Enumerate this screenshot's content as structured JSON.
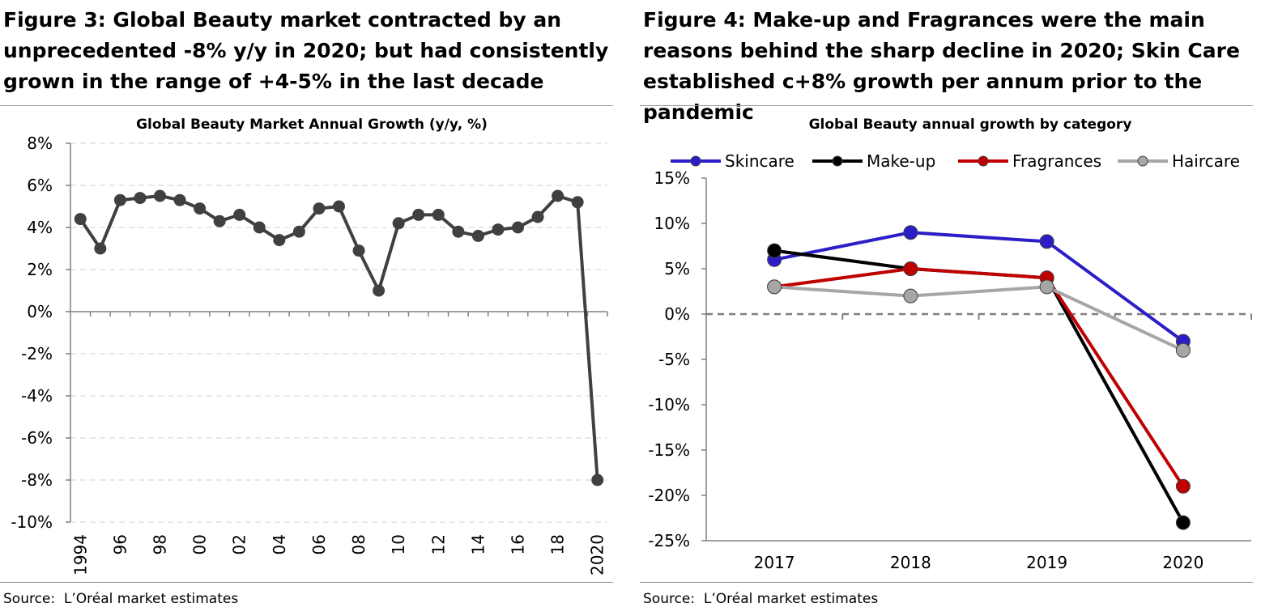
{
  "figure3": {
    "heading": "Figure 3: Global Beauty market contracted by an unprecedented -8% y/y in 2020; but had consistently grown in the range of +4-5% in the last decade",
    "source": "Source:  L’Oréal market estimates"
  },
  "figure4": {
    "heading": "Figure 4: Make-up and Fragrances were the main reasons behind the sharp decline in 2020; Skin Care established c+8% growth per annum prior to the pandemic",
    "source": "Source:  L’Oréal market estimates"
  },
  "chart_data": [
    {
      "type": "line",
      "title": "Global Beauty Market Annual Growth  (y/y, %)",
      "xlabel": "",
      "ylabel": "",
      "x": [
        1994,
        1995,
        1996,
        1997,
        1998,
        1999,
        2000,
        2001,
        2002,
        2003,
        2004,
        2005,
        2006,
        2007,
        2008,
        2009,
        2010,
        2011,
        2012,
        2013,
        2014,
        2015,
        2016,
        2017,
        2018,
        2019,
        2020
      ],
      "x_tick_labels": [
        {
          "x": 1994,
          "label": "1994"
        },
        {
          "x": 1996,
          "label": "96"
        },
        {
          "x": 1998,
          "label": "98"
        },
        {
          "x": 2000,
          "label": "00"
        },
        {
          "x": 2002,
          "label": "02"
        },
        {
          "x": 2004,
          "label": "04"
        },
        {
          "x": 2006,
          "label": "06"
        },
        {
          "x": 2008,
          "label": "08"
        },
        {
          "x": 2010,
          "label": "10"
        },
        {
          "x": 2012,
          "label": "12"
        },
        {
          "x": 2014,
          "label": "14"
        },
        {
          "x": 2016,
          "label": "16"
        },
        {
          "x": 2018,
          "label": "18"
        },
        {
          "x": 2020,
          "label": "2020"
        }
      ],
      "series": [
        {
          "values": [
            4.4,
            3.0,
            5.3,
            5.4,
            5.5,
            5.3,
            4.9,
            4.3,
            4.6,
            4.0,
            3.4,
            3.8,
            4.9,
            5.0,
            2.9,
            1.0,
            4.2,
            4.6,
            4.6,
            3.8,
            3.6,
            3.9,
            4.0,
            4.5,
            5.5,
            5.2,
            -8.0
          ],
          "color": "#404040"
        }
      ],
      "ylim": [
        -10,
        8
      ],
      "yticks": [
        8,
        6,
        4,
        2,
        0,
        -2,
        -4,
        -6,
        -8,
        -10
      ],
      "ytick_labels": [
        "8%",
        "6%",
        "4%",
        "2%",
        "0%",
        "-2%",
        "-4%",
        "-6%",
        "-8%",
        "-10%"
      ],
      "grid": true
    },
    {
      "type": "line",
      "title": "Global Beauty annual growth by category",
      "xlabel": "",
      "ylabel": "",
      "categories": [
        "2017",
        "2018",
        "2019",
        "2020"
      ],
      "series": [
        {
          "name": "Skincare",
          "values": [
            6,
            9,
            8,
            -3
          ],
          "color": "#2b1ec8"
        },
        {
          "name": "Make-up",
          "values": [
            7,
            5,
            4,
            -23
          ],
          "color": "#000000"
        },
        {
          "name": "Fragrances",
          "values": [
            3,
            5,
            4,
            -19
          ],
          "color": "#c00000"
        },
        {
          "name": "Haircare",
          "values": [
            3,
            2,
            3,
            -4
          ],
          "color": "#a6a6a6"
        }
      ],
      "ylim": [
        -25,
        15
      ],
      "yticks": [
        15,
        10,
        5,
        0,
        -5,
        -10,
        -15,
        -20,
        -25
      ],
      "ytick_labels": [
        "15%",
        "10%",
        "5%",
        "0%",
        "-5%",
        "-10%",
        "-15%",
        "-20%",
        "-25%"
      ],
      "legend_position": "top",
      "grid": false
    }
  ]
}
